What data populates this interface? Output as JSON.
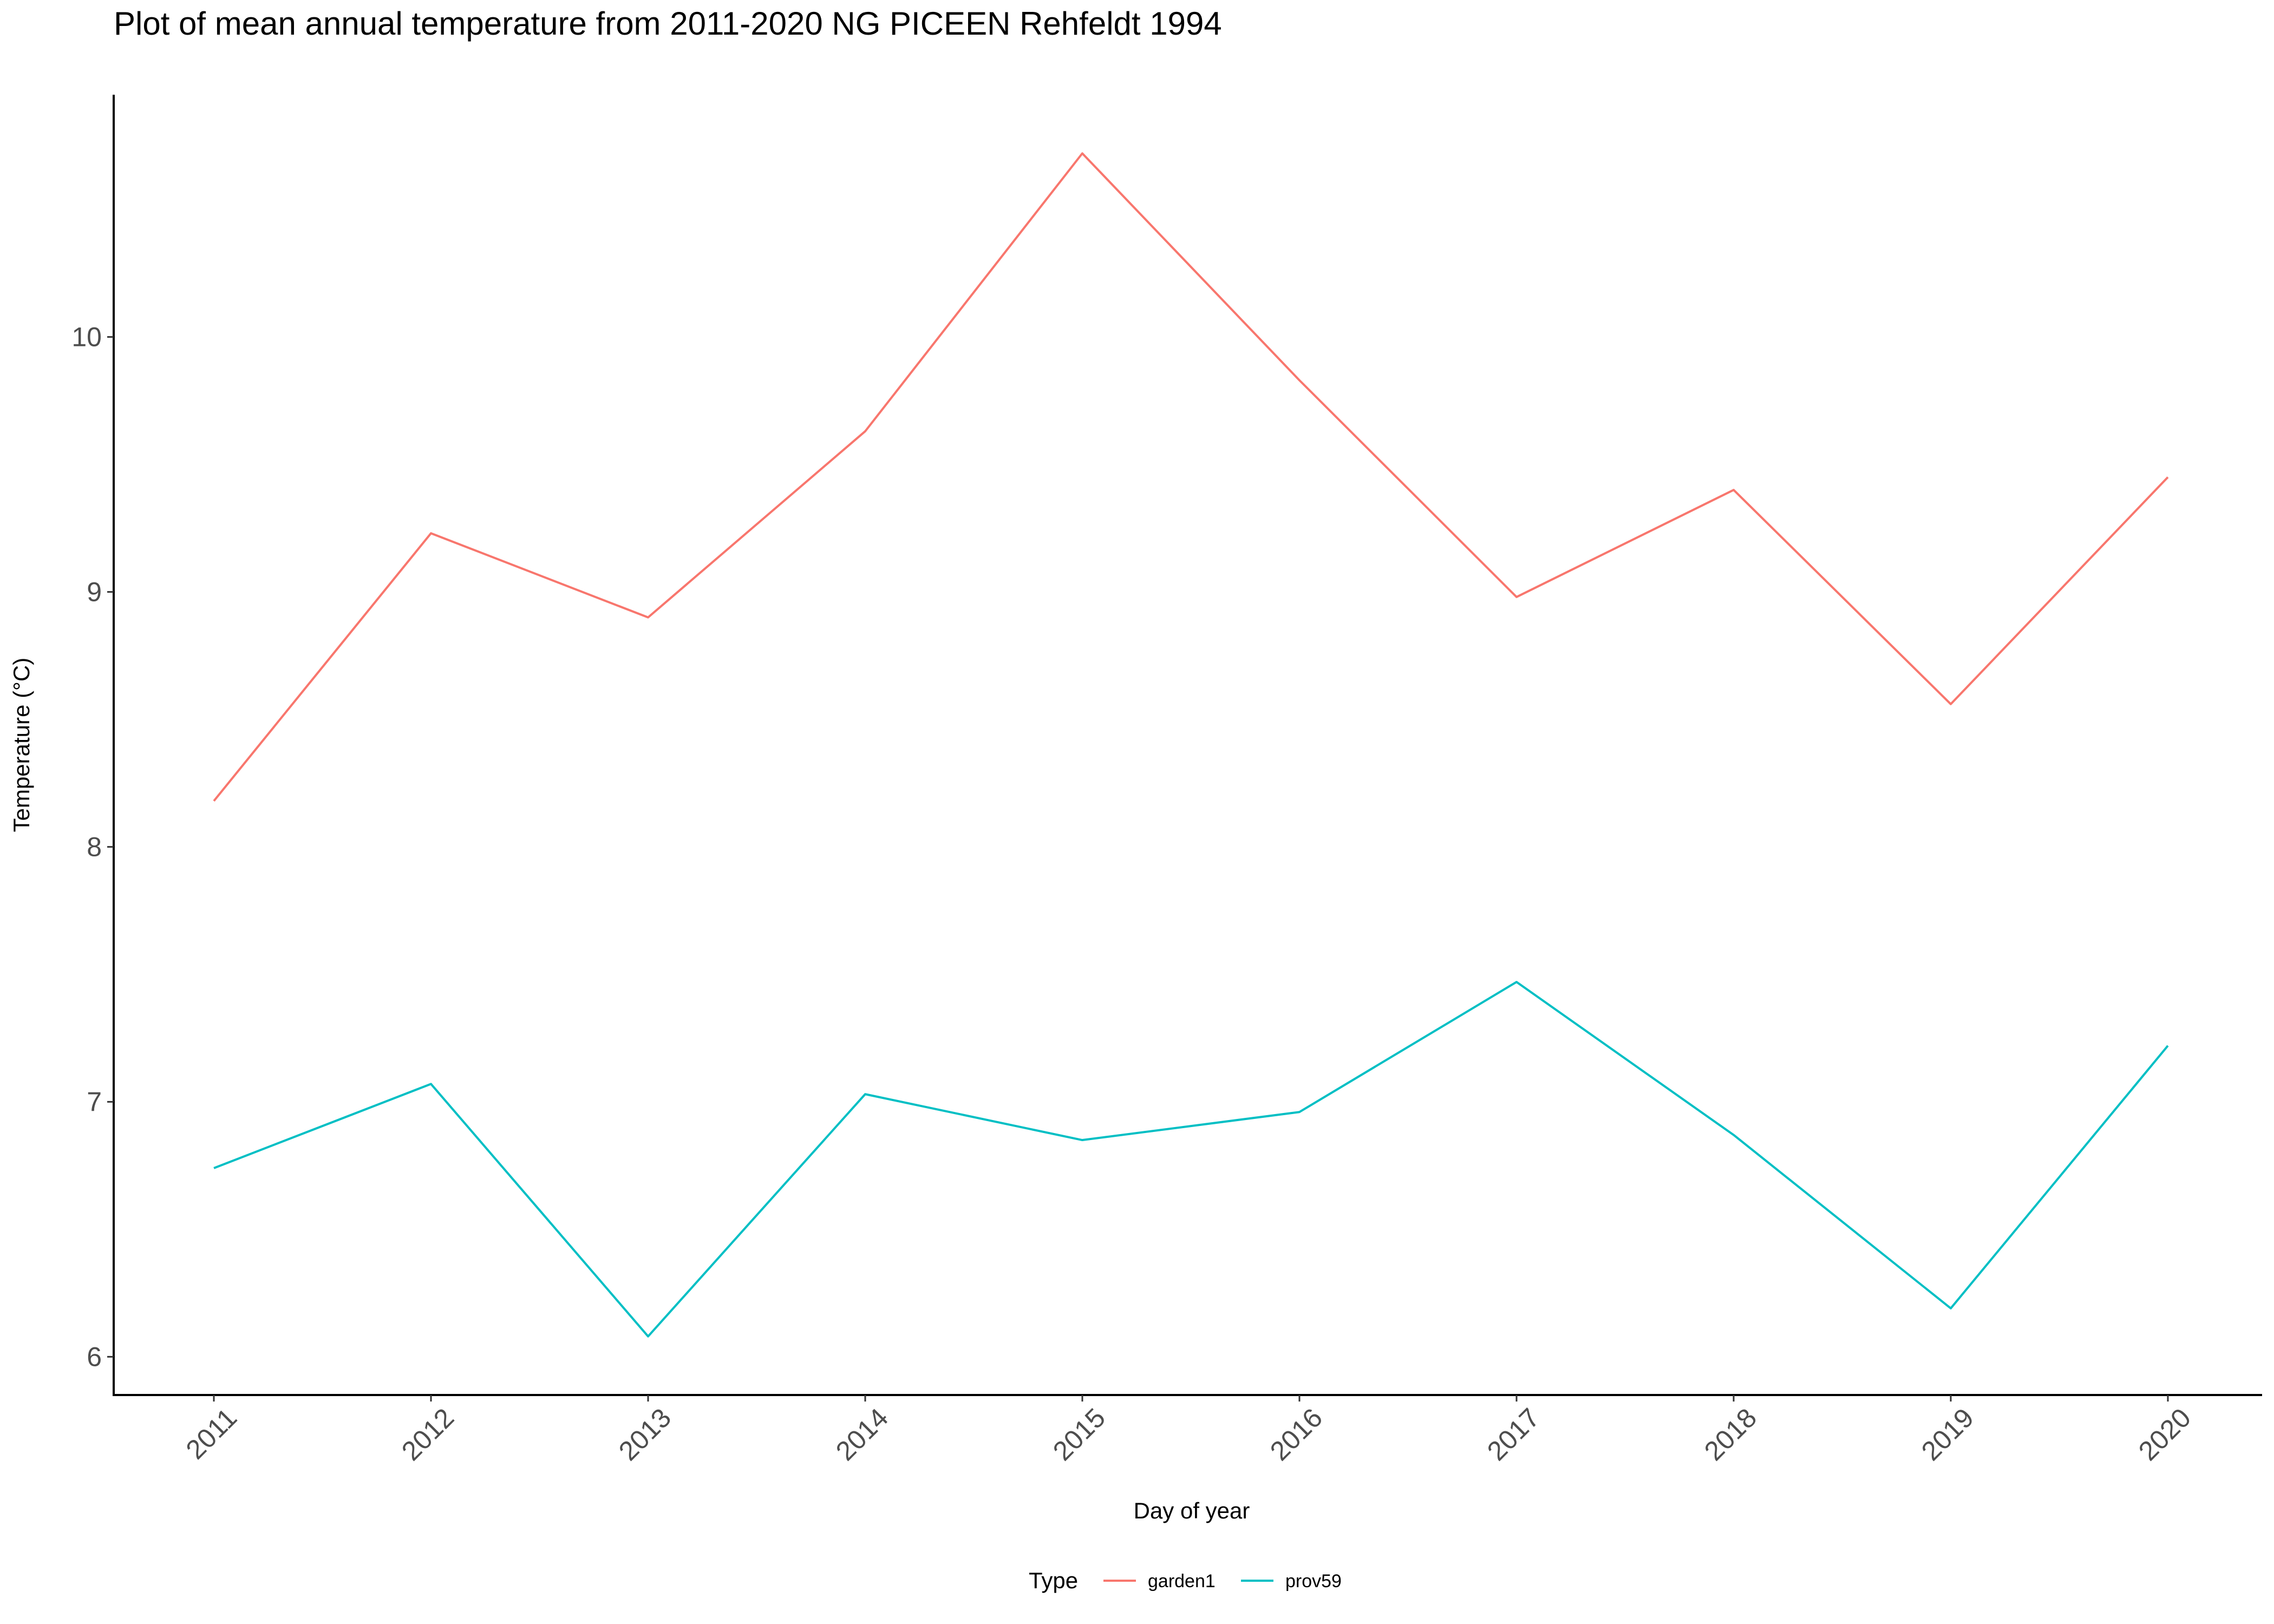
{
  "chart_data": {
    "type": "line",
    "title": "Plot of mean annual temperature from 2011-2020 NG PICEEN Rehfeldt 1994",
    "xlabel": "Day of year",
    "ylabel": "Temperature (°C)",
    "categories": [
      "2011",
      "2012",
      "2013",
      "2014",
      "2015",
      "2016",
      "2017",
      "2018",
      "2019",
      "2020"
    ],
    "yticks": [
      6,
      7,
      8,
      9,
      10
    ],
    "ylim": [
      5.85,
      10.95
    ],
    "grid": false,
    "legend": {
      "title": "Type",
      "position": "bottom"
    },
    "series": [
      {
        "name": "garden1",
        "color": "#F8766D",
        "values": [
          8.18,
          9.23,
          8.9,
          9.63,
          10.72,
          9.83,
          8.98,
          9.4,
          8.56,
          9.45
        ]
      },
      {
        "name": "prov59",
        "color": "#00BFC4",
        "values": [
          6.74,
          7.07,
          6.08,
          7.03,
          6.85,
          6.96,
          7.47,
          6.87,
          6.19,
          7.22
        ]
      }
    ]
  }
}
